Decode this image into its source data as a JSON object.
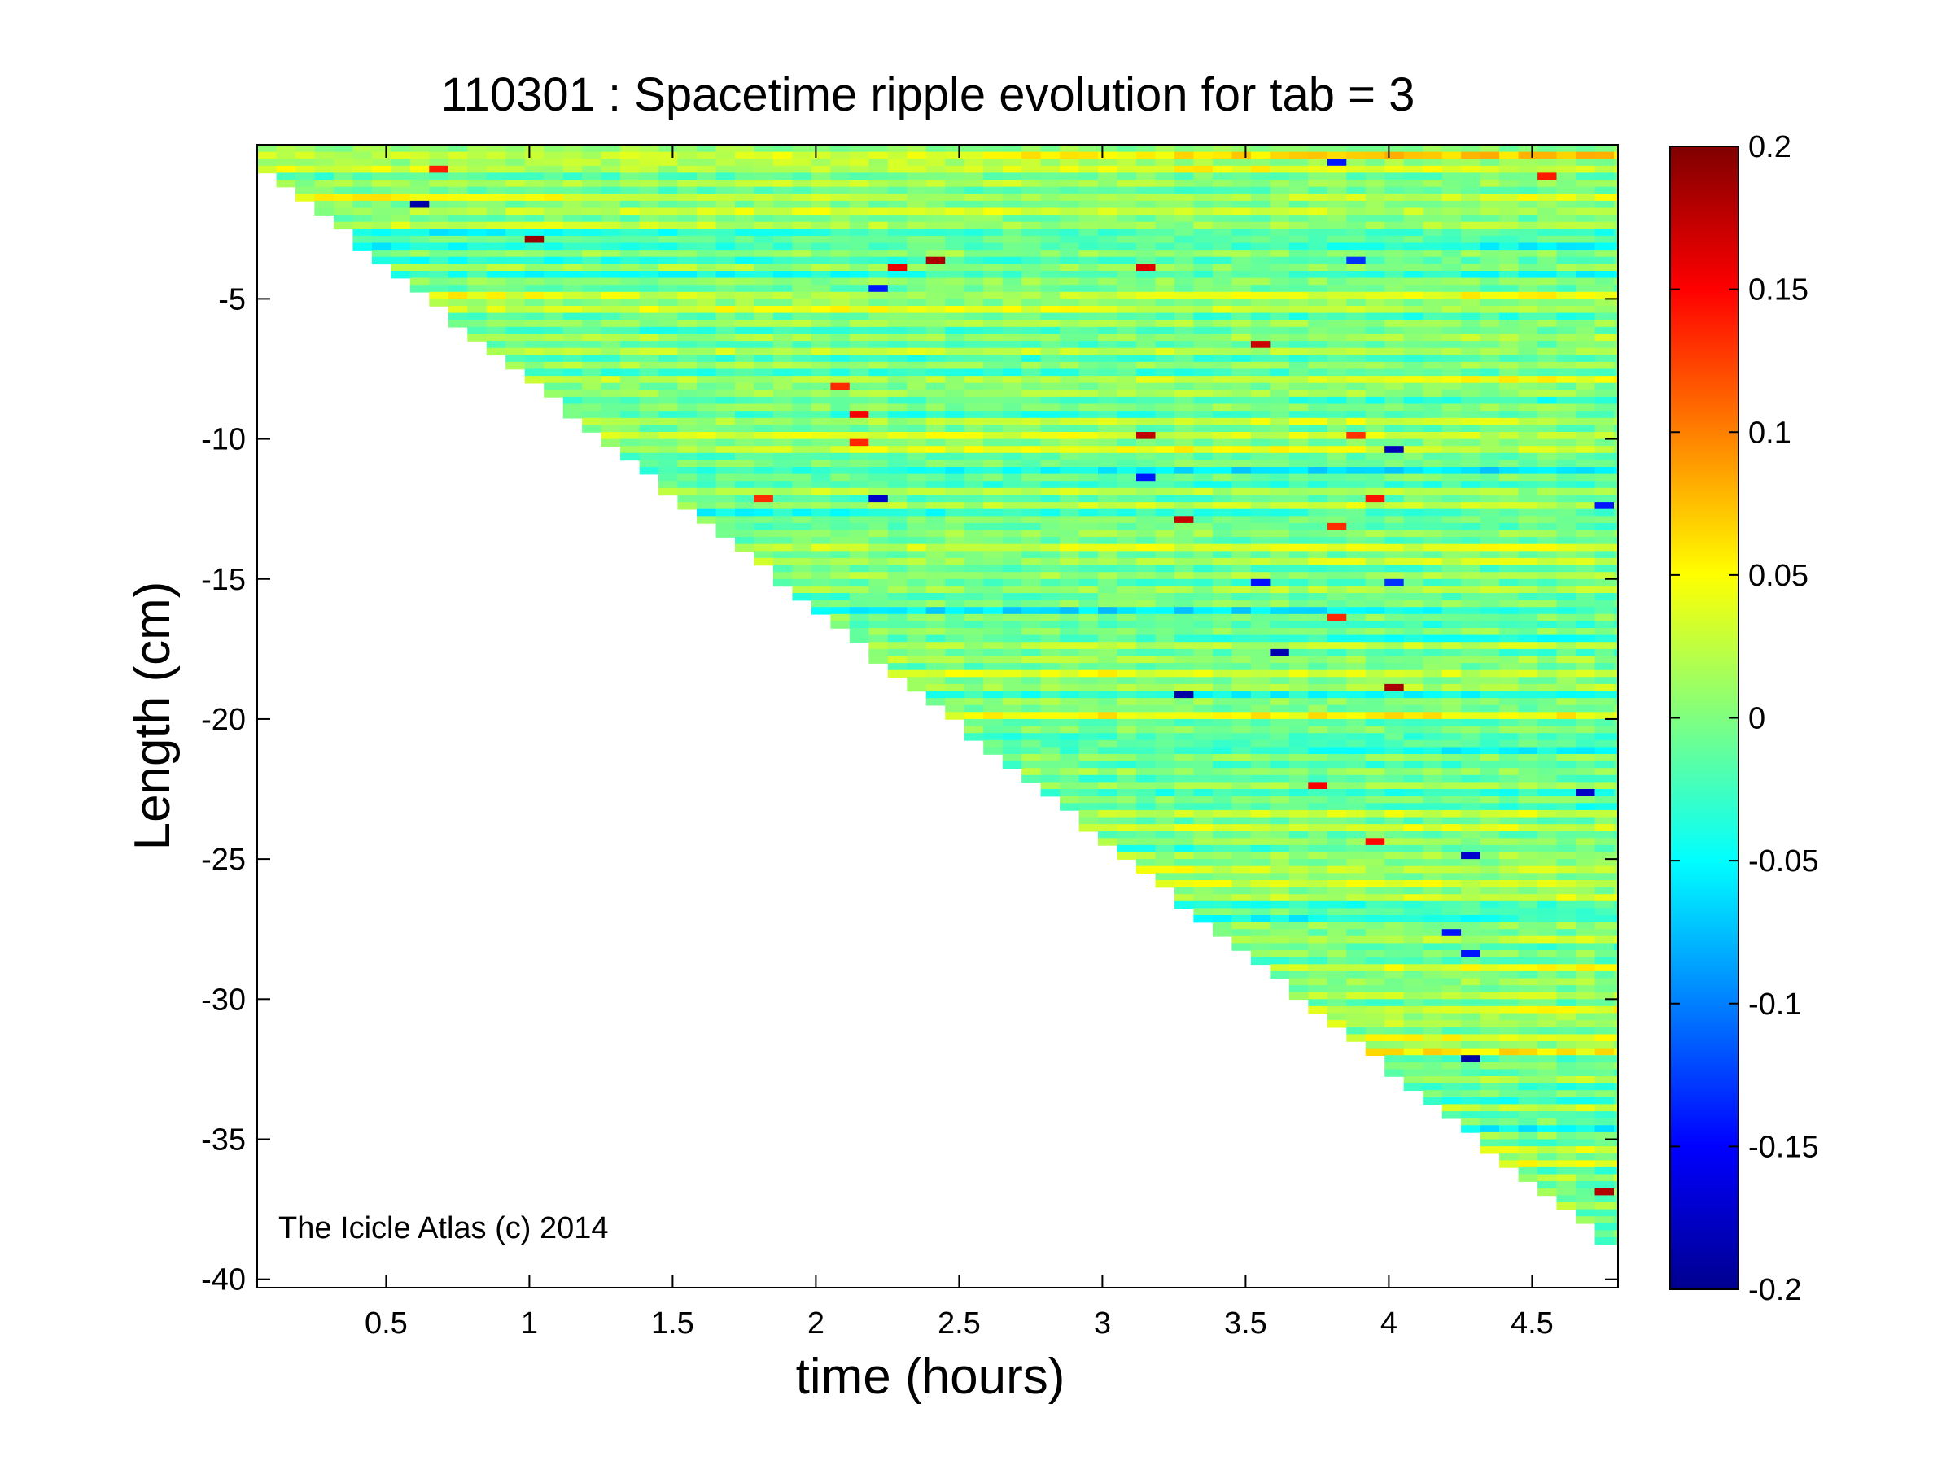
{
  "chart_data": {
    "type": "heatmap",
    "title": "110301 : Spacetime ripple evolution for tab = 3",
    "xlabel": "time (hours)",
    "ylabel": "Length (cm)",
    "xlim": [
      0.05,
      4.8
    ],
    "ylim": [
      -40.3,
      0.5
    ],
    "x_ticks": [
      0.5,
      1,
      1.5,
      2,
      2.5,
      3,
      3.5,
      4,
      4.5
    ],
    "x_tick_labels": [
      "0.5",
      "1",
      "1.5",
      "2",
      "2.5",
      "3",
      "3.5",
      "4",
      "4.5"
    ],
    "y_ticks": [
      -5,
      -10,
      -15,
      -20,
      -25,
      -30,
      -35,
      -40
    ],
    "y_tick_labels": [
      "-5",
      "-10",
      "-15",
      "-20",
      "-25",
      "-30",
      "-35",
      "-40"
    ],
    "colorbar": {
      "colormap": "jet",
      "range": [
        -0.2,
        0.2
      ],
      "ticks": [
        0.2,
        0.15,
        0.1,
        0.05,
        0,
        -0.05,
        -0.1,
        -0.15,
        -0.2
      ],
      "tick_labels": [
        "0.2",
        "0.15",
        "0.1",
        "0.05",
        "0",
        "-0.05",
        "-0.1",
        "-0.15",
        "-0.2"
      ]
    },
    "data_extent": {
      "tip_length_start": [
        0.05,
        0.0
      ],
      "tip_length_end": [
        4.8,
        -38.9
      ],
      "time_step_hours": 0.0667,
      "length_step_cm": 0.25
    },
    "annotation": "The Icicle Atlas (c) 2014",
    "grid": false
  }
}
